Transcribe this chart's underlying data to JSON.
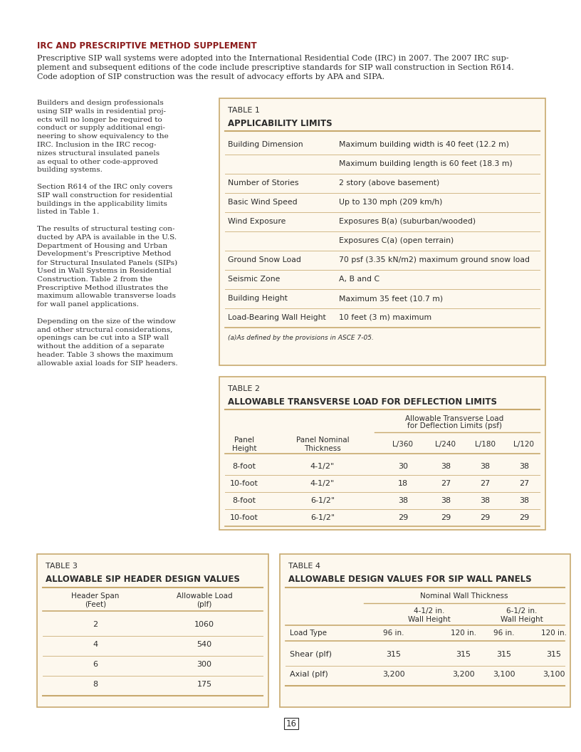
{
  "page_bg": "#ffffff",
  "header_color": "#8B1A1A",
  "text_color": "#2c2c2c",
  "table_bg": "#fdf8ee",
  "table_border": "#c8a96e",
  "line_color": "#c8a96e",
  "section_title": "IRC AND PRESCRIPTIVE METHOD SUPPLEMENT",
  "intro_line1": "Prescriptive SIP wall systems were adopted into the International Residential Code (IRC) in 2007. The 2007 IRC sup-",
  "intro_line2": "plement and subsequent editions of the code include prescriptive standards for SIP wall construction in Section R614.",
  "intro_line3": "Code adoption of SIP construction was the result of advocacy efforts by APA and SIPA.",
  "left_col_lines": [
    "Builders and design professionals",
    "using SIP walls in residential proj-",
    "ects will no longer be required to",
    "conduct or supply additional engi-",
    "neering to show equivalency to the",
    "IRC. Inclusion in the IRC recog-",
    "nizes structural insulated panels",
    "as equal to other code-approved",
    "building systems.",
    "",
    "Section R614 of the IRC only covers",
    "SIP wall construction for residential",
    "buildings in the applicability limits",
    "listed in Table 1.",
    "",
    "The results of structural testing con-",
    "ducted by APA is available in the U.S.",
    "Department of Housing and Urban",
    "Development's Prescriptive Method",
    "for Structural Insulated Panels (SIPs)",
    "Used in Wall Systems in Residential",
    "Construction. Table 2 from the",
    "Prescriptive Method illustrates the",
    "maximum allowable transverse loads",
    "for wall panel applications.",
    "",
    "Depending on the size of the window",
    "and other structural considerations,",
    "openings can be cut into a SIP wall",
    "without the addition of a separate",
    "header. Table 3 shows the maximum",
    "allowable axial loads for SIP headers."
  ],
  "table1_title": "TABLE 1",
  "table1_heading": "APPLICABILITY LIMITS",
  "table1_rows": [
    [
      "Building Dimension",
      "Maximum building width is 40 feet (12.2 m)"
    ],
    [
      "",
      "Maximum building length is 60 feet (18.3 m)"
    ],
    [
      "Number of Stories",
      "2 story (above basement)"
    ],
    [
      "Basic Wind Speed",
      "Up to 130 mph (209 km/h)"
    ],
    [
      "Wind Exposure",
      "Exposures B(a) (suburban/wooded)"
    ],
    [
      "",
      "Exposures C(a) (open terrain)"
    ],
    [
      "Ground Snow Load",
      "70 psf (3.35 kN/m2) maximum ground snow load"
    ],
    [
      "Seismic Zone",
      "A, B and C"
    ],
    [
      "Building Height",
      "Maximum 35 feet (10.7 m)"
    ],
    [
      "Load-Bearing Wall Height",
      "10 feet (3 m) maximum"
    ]
  ],
  "table1_footnote": "(a)As defined by the provisions in ASCE 7-05.",
  "table2_title": "TABLE 2",
  "table2_heading": "ALLOWABLE TRANSVERSE LOAD FOR DEFLECTION LIMITS",
  "table2_span_header1": "Allowable Transverse Load",
  "table2_span_header2": "for Deflection Limits (psf)",
  "table2_col_labels": [
    "Panel\nHeight",
    "Panel Nominal\nThickness",
    "L/360",
    "L/240",
    "L/180",
    "L/120"
  ],
  "table2_rows": [
    [
      "8-foot",
      "4-1/2\"",
      "30",
      "38",
      "38",
      "38"
    ],
    [
      "10-foot",
      "4-1/2\"",
      "18",
      "27",
      "27",
      "27"
    ],
    [
      "8-foot",
      "6-1/2\"",
      "38",
      "38",
      "38",
      "38"
    ],
    [
      "10-foot",
      "6-1/2\"",
      "29",
      "29",
      "29",
      "29"
    ]
  ],
  "table3_title": "TABLE 3",
  "table3_heading": "ALLOWABLE SIP HEADER DESIGN VALUES",
  "table3_col1_label": "Header Span\n(Feet)",
  "table3_col2_label": "Allowable Load\n(plf)",
  "table3_rows": [
    [
      "2",
      "1060"
    ],
    [
      "4",
      "540"
    ],
    [
      "6",
      "300"
    ],
    [
      "8",
      "175"
    ]
  ],
  "table4_title": "TABLE 4",
  "table4_heading": "ALLOWABLE DESIGN VALUES FOR SIP WALL PANELS",
  "table4_nominal_header": "Nominal Wall Thickness",
  "table4_thickness_header1": "4-1/2 in.\nWall Height",
  "table4_thickness_header2": "6-1/2 in.\nWall Height",
  "table4_height_labels": [
    "96 in.",
    "120 in.",
    "96 in.",
    "120 in."
  ],
  "table4_col0_label": "Load Type",
  "table4_rows": [
    [
      "Shear (plf)",
      "315",
      "315",
      "315",
      "315"
    ],
    [
      "Axial (plf)",
      "3,200",
      "3,200",
      "3,100",
      "3,100"
    ]
  ],
  "page_number": "16"
}
